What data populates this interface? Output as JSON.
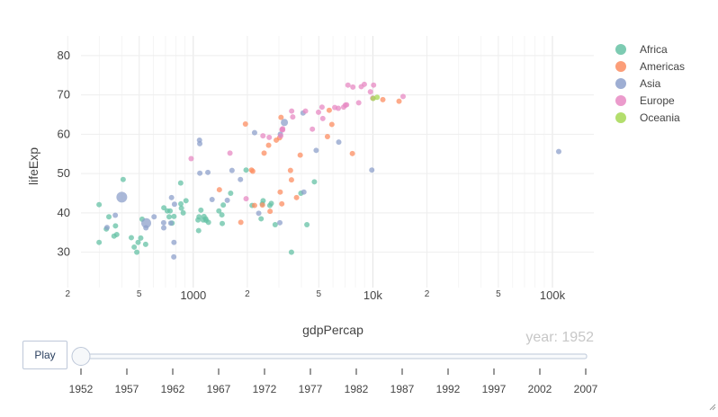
{
  "chart_data": {
    "type": "scatter",
    "title": "",
    "xlabel": "gdpPercap",
    "ylabel": "lifeExp",
    "x_scale": "log",
    "xlim": [
      237,
      170000
    ],
    "ylim": [
      21,
      85
    ],
    "grid": true,
    "legend_position": "top-right",
    "x_tick_labels": [
      "2",
      "5",
      "1000",
      "2",
      "5",
      "10k",
      "2",
      "5",
      "100k"
    ],
    "y_tick_labels": [
      "30",
      "40",
      "50",
      "60",
      "70",
      "80"
    ],
    "frame_label": "year: 1952",
    "series": [
      {
        "name": "Africa",
        "color": "#66c2a5",
        "points": [
          [
            2449,
            43.1
          ],
          [
            3521,
            30.0
          ],
          [
            1063,
            38.2
          ],
          [
            851,
            47.6
          ],
          [
            543,
            32.0
          ],
          [
            339,
            39.0
          ],
          [
            1173,
            38.5
          ],
          [
            1071,
            35.5
          ],
          [
            1179,
            38.1
          ],
          [
            1103,
            40.7
          ],
          [
            781,
            39.1
          ],
          [
            2126,
            41.9
          ],
          [
            1389,
            40.5
          ],
          [
            2670,
            41.9
          ],
          [
            375,
            34.5
          ],
          [
            328,
            35.9
          ],
          [
            362,
            34.1
          ],
          [
            4293,
            37.0
          ],
          [
            485,
            30.0
          ],
          [
            911,
            43.1
          ],
          [
            510,
            33.6
          ],
          [
            299,
            32.5
          ],
          [
            853,
            42.3
          ],
          [
            299,
            42.1
          ],
          [
            2387,
            38.5
          ],
          [
            1443,
            39.5
          ],
          [
            369,
            36.7
          ],
          [
            519,
            38.4
          ],
          [
            452,
            33.7
          ],
          [
            743,
            40.5
          ],
          [
            1968,
            50.9
          ],
          [
            469,
            31.3
          ],
          [
            2424,
            42.3
          ],
          [
            762,
            37.4
          ],
          [
            1077,
            39.0
          ],
          [
            2719,
            42.4
          ],
          [
            493,
            32.5
          ],
          [
            879,
            40.0
          ],
          [
            1450,
            37.3
          ],
          [
            1136,
            38.2
          ],
          [
            3974,
            45.0
          ],
          [
            686,
            41.3
          ],
          [
            4725,
            47.9
          ],
          [
            1615,
            45.0
          ],
          [
            717,
            40.5
          ],
          [
            1215,
            37.6
          ],
          [
            859,
            41.2
          ],
          [
            1469,
            42.0
          ],
          [
            734,
            39.0
          ],
          [
            1148,
            39.1
          ],
          [
            407,
            48.5
          ],
          [
            2858,
            37.0
          ]
        ]
      },
      {
        "name": "Americas",
        "color": "#fc8d62",
        "points": [
          [
            5911,
            62.5
          ],
          [
            2677,
            40.4
          ],
          [
            2109,
            50.9
          ],
          [
            11367,
            68.8
          ],
          [
            3940,
            54.7
          ],
          [
            2144,
            50.6
          ],
          [
            2628,
            57.2
          ],
          [
            5587,
            59.4
          ],
          [
            1398,
            45.9
          ],
          [
            3522,
            48.4
          ],
          [
            3048,
            45.3
          ],
          [
            2428,
            42.0
          ],
          [
            1840,
            37.6
          ],
          [
            2194,
            41.9
          ],
          [
            2898,
            58.5
          ],
          [
            3478,
            50.8
          ],
          [
            3112,
            42.3
          ],
          [
            2480,
            55.2
          ],
          [
            1952,
            62.6
          ],
          [
            3759,
            43.9
          ],
          [
            3081,
            64.3
          ],
          [
            3024,
            59.1
          ],
          [
            13990,
            68.4
          ],
          [
            5717,
            66.1
          ],
          [
            7690,
            55.1
          ]
        ]
      },
      {
        "name": "Asia",
        "color": "#8da0cb",
        "points": [
          [
            779,
            28.8
          ],
          [
            9867,
            50.9
          ],
          [
            684,
            37.5
          ],
          [
            368,
            39.4
          ],
          [
            400,
            44.0
          ],
          [
            3054,
            60.0
          ],
          [
            547,
            37.4
          ],
          [
            750,
            37.4
          ],
          [
            3035,
            37.5
          ],
          [
            4129,
            45.3
          ],
          [
            4086,
            65.4
          ],
          [
            3217,
            63.0
          ],
          [
            1547,
            43.2
          ],
          [
            1088,
            50.1
          ],
          [
            108382,
            55.6
          ],
          [
            4835,
            55.9
          ],
          [
            1831,
            48.5
          ],
          [
            786,
            42.2
          ],
          [
            331,
            36.3
          ],
          [
            545,
            36.2
          ],
          [
            1087,
            57.6
          ],
          [
            685,
            36.2
          ],
          [
            1273,
            43.4
          ],
          [
            6459,
            58.0
          ],
          [
            2315,
            39.9
          ],
          [
            1083,
            58.5
          ],
          [
            1643,
            50.8
          ],
          [
            1206,
            50.3
          ],
          [
            757,
            43.9
          ],
          [
            605,
            39.0
          ],
          [
            781,
            32.5
          ],
          [
            2195,
            60.4
          ]
        ]
      },
      {
        "name": "Europe",
        "color": "#e78ac3",
        "points": [
          [
            1601,
            55.2
          ],
          [
            6137,
            66.8
          ],
          [
            8343,
            68.0
          ],
          [
            973,
            53.8
          ],
          [
            2444,
            59.6
          ],
          [
            3119,
            61.2
          ],
          [
            6877,
            66.9
          ],
          [
            9692,
            70.8
          ],
          [
            6424,
            66.6
          ],
          [
            7030,
            67.4
          ],
          [
            7144,
            67.5
          ],
          [
            3531,
            65.9
          ],
          [
            5264,
            64.0
          ],
          [
            7268,
            72.5
          ],
          [
            5211,
            66.9
          ],
          [
            4216,
            65.9
          ],
          [
            2648,
            59.2
          ],
          [
            8617,
            72.1
          ],
          [
            8965,
            72.7
          ],
          [
            10095,
            72.5
          ],
          [
            4605,
            61.3
          ],
          [
            3069,
            59.6
          ],
          [
            3145,
            61.1
          ],
          [
            3581,
            64.4
          ],
          [
            4981,
            65.6
          ],
          [
            7740,
            72.0
          ],
          [
            14734,
            69.6
          ],
          [
            1969,
            43.6
          ],
          [
            9980,
            69.2
          ],
          [
            3146,
            61.4
          ]
        ]
      },
      {
        "name": "Oceania",
        "color": "#a6d854",
        "points": [
          [
            10040,
            69.1
          ],
          [
            10557,
            69.4
          ]
        ]
      }
    ],
    "slider": {
      "current": "1952",
      "steps": [
        "1952",
        "1957",
        "1962",
        "1967",
        "1972",
        "1977",
        "1982",
        "1987",
        "1992",
        "1997",
        "2002",
        "2007"
      ]
    }
  },
  "controls": {
    "play_label": "Play"
  }
}
